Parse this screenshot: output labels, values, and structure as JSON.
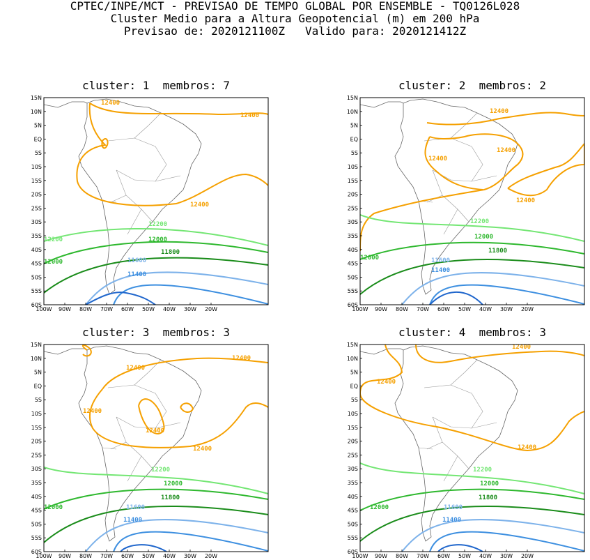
{
  "header": {
    "line1": "CPTEC/INPE/MCT - PREVISAO DE TEMPO GLOBAL POR ENSEMBLE - TQ0126L028",
    "line2": "Cluster Medio para a Altura Geopotencial (m) em 200 hPa",
    "line3": "Previsao de: 2020121100Z   Valido para: 2020121412Z"
  },
  "axes": {
    "lat_labels": [
      "15N",
      "10N",
      "5N",
      "EQ",
      "5S",
      "10S",
      "15S",
      "20S",
      "25S",
      "30S",
      "35S",
      "40S",
      "45S",
      "50S",
      "55S",
      "60S"
    ],
    "lon_labels": [
      "100W",
      "90W",
      "80W",
      "70W",
      "60W",
      "50W",
      "40W",
      "30W",
      "20W"
    ]
  },
  "levels": {
    "l12400": "12400",
    "l12200": "12200",
    "l12000": "12000",
    "l11800": "11800",
    "l11600": "11600",
    "l11400": "11400"
  },
  "colors": {
    "c12400": "#f5a000",
    "c12200": "#73e673",
    "c12000": "#2eb82e",
    "c11800": "#1a8c1a",
    "c11600": "#7db2ea",
    "c11400": "#3d8fe0",
    "c11200": "#1f66cc"
  },
  "panels": [
    {
      "title": "cluster: 1  membros: 7"
    },
    {
      "title": "cluster: 2  membros: 2"
    },
    {
      "title": "cluster: 3  membros: 3"
    },
    {
      "title": "cluster: 4  membros: 3"
    }
  ]
}
